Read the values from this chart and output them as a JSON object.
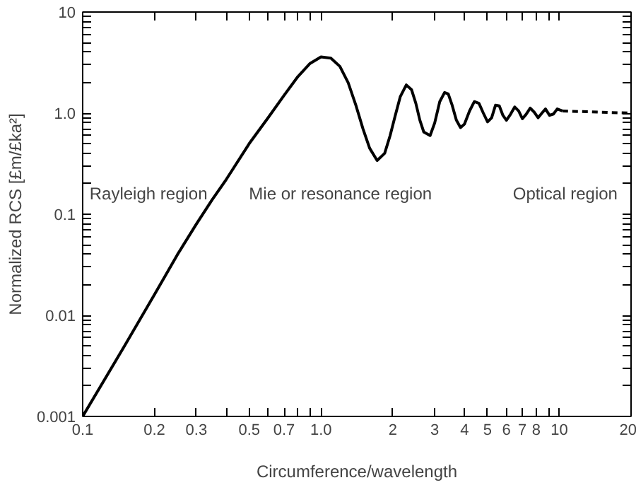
{
  "chart_data": {
    "type": "line",
    "xlabel": "Circumference/wavelength",
    "ylabel": "Normalized RCS [£m/£ka²]",
    "log": "xy",
    "grid": false,
    "marker": "none",
    "xlim": [
      0.1,
      20
    ],
    "ylim": [
      0.001,
      10
    ],
    "xticks": [
      0.1,
      0.2,
      0.3,
      {
        "value": 0.4,
        "label": null
      },
      0.5,
      {
        "value": 0.6,
        "label": null
      },
      0.7,
      {
        "value": 0.8,
        "label": null
      },
      {
        "value": 0.9,
        "label": null
      },
      {
        "value": 1,
        "label": "1.0"
      },
      2,
      3,
      4,
      5,
      6,
      7,
      8,
      {
        "value": 9,
        "label": null
      },
      10,
      20
    ],
    "yticks": [
      0.001,
      {
        "value": 0.002,
        "label": null
      },
      {
        "value": 0.003,
        "label": null
      },
      {
        "value": 0.004,
        "label": null
      },
      {
        "value": 0.005,
        "label": null
      },
      {
        "value": 0.006,
        "label": null
      },
      {
        "value": 0.007,
        "label": null
      },
      {
        "value": 0.008,
        "label": null
      },
      {
        "value": 0.009,
        "label": null
      },
      0.01,
      {
        "value": 0.02,
        "label": null
      },
      {
        "value": 0.03,
        "label": null
      },
      {
        "value": 0.04,
        "label": null
      },
      {
        "value": 0.05,
        "label": null
      },
      {
        "value": 0.06,
        "label": null
      },
      {
        "value": 0.07,
        "label": null
      },
      {
        "value": 0.08,
        "label": null
      },
      {
        "value": 0.09,
        "label": null
      },
      0.1,
      {
        "value": 0.2,
        "label": null
      },
      {
        "value": 0.3,
        "label": null
      },
      {
        "value": 0.4,
        "label": null
      },
      {
        "value": 0.5,
        "label": null
      },
      {
        "value": 0.6,
        "label": null
      },
      {
        "value": 0.7,
        "label": null
      },
      {
        "value": 0.8,
        "label": null
      },
      {
        "value": 0.9,
        "label": null
      },
      {
        "value": 1,
        "label": "1.0"
      },
      {
        "value": 2,
        "label": null
      },
      {
        "value": 3,
        "label": null
      },
      {
        "value": 4,
        "label": null
      },
      {
        "value": 5,
        "label": null
      },
      {
        "value": 6,
        "label": null
      },
      {
        "value": 7,
        "label": null
      },
      {
        "value": 8,
        "label": null
      },
      {
        "value": 9,
        "label": null
      },
      10
    ],
    "annotations": [
      "Rayleigh region",
      "Mie or resonance region",
      "Optical region"
    ],
    "series": [
      {
        "color": "#000000",
        "line_style": "solid",
        "x": [
          0.1,
          0.15,
          0.2,
          0.25,
          0.3,
          0.35,
          0.4,
          0.5,
          0.6,
          0.7,
          0.8,
          0.9,
          1.0,
          1.1,
          1.2,
          1.3,
          1.4,
          1.5,
          1.6,
          1.72,
          1.85,
          1.95,
          2.05,
          2.15,
          2.28,
          2.4,
          2.5,
          2.6,
          2.7,
          2.87,
          3.0,
          3.15,
          3.3,
          3.42,
          3.55,
          3.7,
          3.85,
          4.0,
          4.2,
          4.4,
          4.6,
          4.8,
          5.0,
          5.2,
          5.4,
          5.6,
          5.8,
          6.0,
          6.25,
          6.5,
          6.75,
          7.0,
          7.25,
          7.55,
          7.85,
          8.15,
          8.45,
          8.75,
          9.1,
          9.45,
          9.8,
          10.3
        ],
        "values": [
          0.001,
          0.005,
          0.016,
          0.04,
          0.08,
          0.14,
          0.22,
          0.5,
          0.9,
          1.5,
          2.3,
          3.1,
          3.6,
          3.5,
          2.9,
          2.0,
          1.2,
          0.7,
          0.45,
          0.34,
          0.4,
          0.6,
          0.95,
          1.45,
          1.9,
          1.7,
          1.25,
          0.85,
          0.65,
          0.6,
          0.8,
          1.3,
          1.6,
          1.55,
          1.2,
          0.85,
          0.72,
          0.78,
          1.05,
          1.3,
          1.25,
          1.0,
          0.82,
          0.9,
          1.2,
          1.18,
          0.95,
          0.85,
          0.98,
          1.15,
          1.05,
          0.88,
          0.97,
          1.12,
          1.02,
          0.9,
          1.0,
          1.1,
          0.95,
          0.98,
          1.1,
          1.05
        ]
      },
      {
        "color": "#000000",
        "line_style": "dashed",
        "x": [
          10.3,
          20
        ],
        "values": [
          1.05,
          1.0
        ]
      }
    ]
  }
}
